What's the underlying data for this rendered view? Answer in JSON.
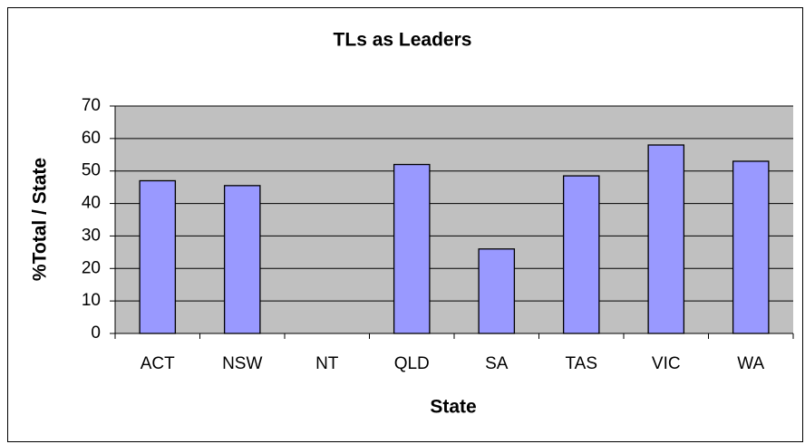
{
  "chart_data": {
    "type": "bar",
    "title": "TLs as Leaders",
    "x_label": "State",
    "y_label": "%Total / State",
    "categories": [
      "ACT",
      "NSW",
      "NT",
      "QLD",
      "SA",
      "TAS",
      "VIC",
      "WA"
    ],
    "values": [
      47,
      45.5,
      null,
      52,
      26,
      48.5,
      58,
      53
    ],
    "color": "#9999ff",
    "plot_background": "#c0c0c0",
    "ylim": [
      0,
      70
    ],
    "yticks": [
      0,
      10,
      20,
      30,
      40,
      50,
      60,
      70
    ],
    "grid": true
  }
}
